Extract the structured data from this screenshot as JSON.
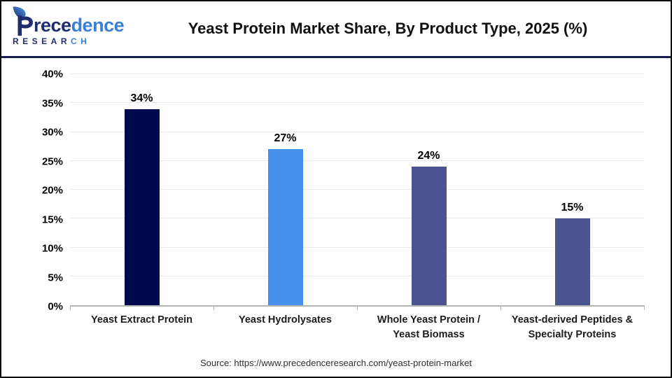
{
  "header": {
    "logo": {
      "name": "Precedence Research",
      "word_start": "rece",
      "word_end": "dence",
      "sub_start": "RESEAR",
      "sub_end": "CH"
    },
    "title": "Yeast Protein Market Share, By Product Type, 2025 (%)"
  },
  "chart_data": {
    "type": "bar",
    "title": "Yeast Protein Market Share, By Product Type, 2025 (%)",
    "categories": [
      "Yeast Extract Protein",
      "Yeast Hydrolysates",
      "Whole Yeast Protein / Yeast Biomass",
      "Yeast-derived Peptides & Specialty Proteins"
    ],
    "category_lines": [
      [
        "Yeast Extract Protein"
      ],
      [
        "Yeast Hydrolysates"
      ],
      [
        "Whole Yeast Protein /",
        "Yeast Biomass"
      ],
      [
        "Yeast-derived Peptides &",
        "Specialty Proteins"
      ]
    ],
    "values": [
      34,
      27,
      24,
      15
    ],
    "value_labels": [
      "34%",
      "27%",
      "24%",
      "15%"
    ],
    "bar_colors": [
      "#01094e",
      "#4590ec",
      "#4c5391",
      "#4c5391"
    ],
    "xlabel": "",
    "ylabel": "",
    "ylim": [
      0,
      40
    ],
    "y_ticks": [
      0,
      5,
      10,
      15,
      20,
      25,
      30,
      35,
      40
    ],
    "y_tick_suffix": "%",
    "grid": "horizontal",
    "legend": "none"
  },
  "footer": {
    "source": "Source: https://www.precedenceresearch.com/yeast-protein-market"
  },
  "colors": {
    "header_divider": "#141b4d",
    "gridline": "#e9e9e9",
    "axis_line": "#b3b3b3",
    "logo_navy": "#1d2d6e",
    "logo_blue": "#3a7fd6",
    "bar_dark_navy": "#01094e",
    "bar_bright_blue": "#4590ec",
    "bar_slate_blue": "#4c5391"
  }
}
